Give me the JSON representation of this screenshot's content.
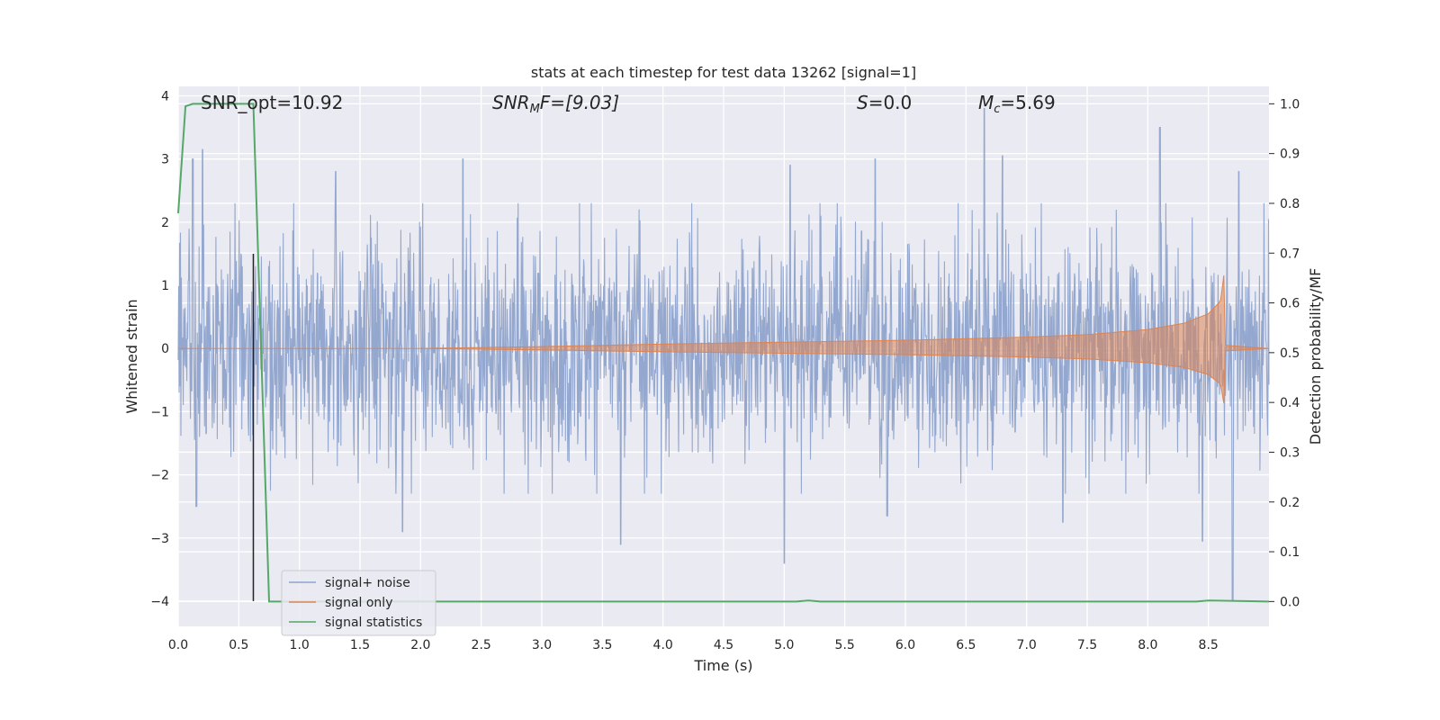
{
  "chart_data": {
    "type": "line",
    "title": "stats at each timestep for test data 13262 [signal=1]",
    "xlabel": "Time (s)",
    "ylabel_left": "Whitened strain",
    "ylabel_right": "Detection probability/MF",
    "xlim": [
      0,
      9
    ],
    "ylim_left": [
      -4.4,
      4.15
    ],
    "ylim_right": [
      -0.05,
      1.035
    ],
    "xticks": [
      "0.0",
      "0.5",
      "1.0",
      "1.5",
      "2.0",
      "2.5",
      "3.0",
      "3.5",
      "4.0",
      "4.5",
      "5.0",
      "5.5",
      "6.0",
      "6.5",
      "7.0",
      "7.5",
      "8.0",
      "8.5"
    ],
    "yticks_left": [
      "−4",
      "−3",
      "−2",
      "−1",
      "0",
      "1",
      "2",
      "3",
      "4"
    ],
    "yticks_right": [
      "0.0",
      "0.1",
      "0.2",
      "0.3",
      "0.4",
      "0.5",
      "0.6",
      "0.7",
      "0.8",
      "0.9",
      "1.0"
    ],
    "grid": true,
    "legend_position": "lower-left",
    "annotations": {
      "snr_opt": "SNR_opt=10.92",
      "snr_mf_main": "SNR",
      "snr_mf_sub": "M",
      "snr_mf_rest": "F=[9.03]",
      "s_main": "S",
      "s_rest": "=0.0",
      "mc_main": "M",
      "mc_sub": "c",
      "mc_rest": "=5.69"
    },
    "series": [
      {
        "name": "signal+ noise",
        "color": "#8ea3cc",
        "axis": "left",
        "description_values": {
          "typical_band": [
            -1.5,
            1.5
          ],
          "peaks_positive": [
            [
              0.12,
              3.0
            ],
            [
              0.2,
              3.15
            ],
            [
              1.3,
              2.8
            ],
            [
              2.35,
              3.0
            ],
            [
              5.05,
              2.9
            ],
            [
              5.75,
              3.0
            ],
            [
              6.65,
              3.8
            ],
            [
              6.8,
              3.05
            ],
            [
              8.1,
              3.5
            ],
            [
              8.75,
              2.8
            ]
          ],
          "peaks_negative": [
            [
              0.15,
              -2.5
            ],
            [
              1.85,
              -2.9
            ],
            [
              3.65,
              -3.1
            ],
            [
              5.0,
              -3.4
            ],
            [
              5.85,
              -2.65
            ],
            [
              7.3,
              -2.75
            ],
            [
              8.45,
              -3.05
            ],
            [
              8.7,
              -4.0
            ]
          ]
        }
      },
      {
        "name": "signal only",
        "color": "#dd8452",
        "axis": "left",
        "envelope": [
          [
            0.0,
            0.0
          ],
          [
            2.0,
            0.0
          ],
          [
            3.0,
            0.03
          ],
          [
            4.0,
            0.07
          ],
          [
            5.0,
            0.1
          ],
          [
            6.0,
            0.13
          ],
          [
            7.0,
            0.18
          ],
          [
            7.5,
            0.22
          ],
          [
            8.0,
            0.3
          ],
          [
            8.3,
            0.4
          ],
          [
            8.5,
            0.55
          ],
          [
            8.6,
            0.75
          ],
          [
            8.63,
            1.2
          ],
          [
            8.64,
            0.05
          ],
          [
            9.0,
            0.0
          ]
        ]
      },
      {
        "name": "signal statistics",
        "color": "#55a868",
        "axis": "right",
        "points": [
          [
            0.0,
            0.78
          ],
          [
            0.06,
            0.995
          ],
          [
            0.12,
            1.0
          ],
          [
            0.62,
            1.0
          ],
          [
            0.75,
            0.0
          ],
          [
            5.1,
            0.0
          ],
          [
            5.2,
            0.002
          ],
          [
            5.3,
            0.0
          ],
          [
            8.4,
            0.0
          ],
          [
            8.5,
            0.002
          ],
          [
            9.0,
            0.0
          ]
        ]
      }
    ],
    "vertical_line": {
      "x": 0.62,
      "y_range_left": [
        -4.0,
        1.5
      ],
      "color": "#222222"
    },
    "legend": [
      "signal+ noise",
      "signal only",
      "signal statistics"
    ]
  }
}
